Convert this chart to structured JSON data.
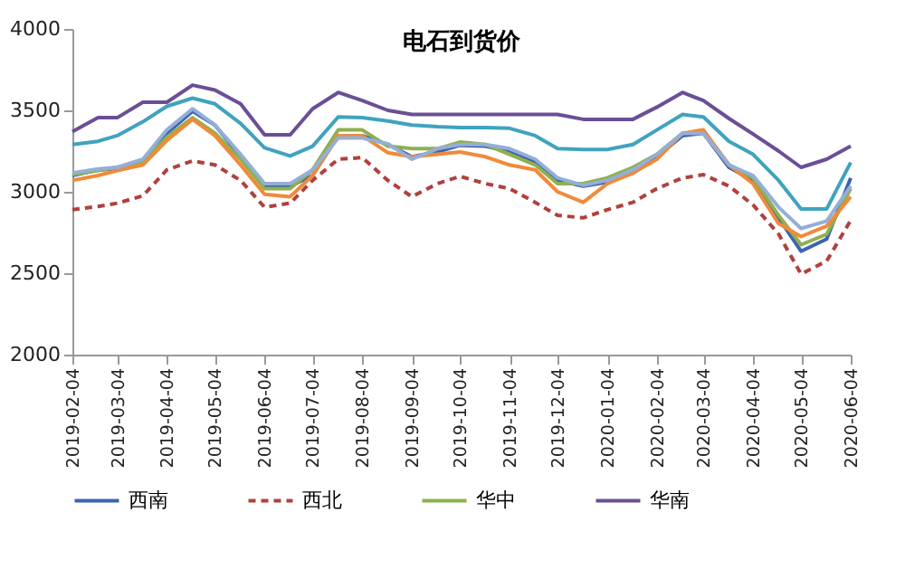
{
  "chart_data": {
    "type": "line",
    "title": "电石到货价",
    "x": [
      "2019-02-04",
      "2019-02-20",
      "2019-03-04",
      "2019-03-20",
      "2019-04-04",
      "2019-04-20",
      "2019-05-04",
      "2019-05-20",
      "2019-06-04",
      "2019-06-20",
      "2019-07-04",
      "2019-07-20",
      "2019-08-04",
      "2019-08-20",
      "2019-09-04",
      "2019-09-20",
      "2019-10-04",
      "2019-10-20",
      "2019-11-04",
      "2019-11-20",
      "2019-12-04",
      "2019-12-20",
      "2020-01-04",
      "2020-01-20",
      "2020-02-04",
      "2020-02-20",
      "2020-03-04",
      "2020-03-20",
      "2020-04-04",
      "2020-04-20",
      "2020-05-04",
      "2020-05-20",
      "2020-06-04"
    ],
    "series": [
      {
        "name": "西南",
        "color": "#3d63b0",
        "values": [
          3100,
          3135,
          3140,
          3170,
          3360,
          3495,
          3410,
          3215,
          3035,
          3035,
          3100,
          3345,
          3345,
          3290,
          3215,
          3245,
          3285,
          3280,
          3245,
          3180,
          3070,
          3035,
          3060,
          3115,
          3215,
          3345,
          3360,
          3150,
          3070,
          2840,
          2635,
          2710,
          3085
        ]
      },
      {
        "name": "西北",
        "color": "#b0413e",
        "line_style": "dashed",
        "values": [
          2890,
          2910,
          2930,
          2975,
          3135,
          3190,
          3165,
          3070,
          2905,
          2930,
          3070,
          3200,
          3210,
          3070,
          2970,
          3050,
          3095,
          3050,
          3020,
          2935,
          2855,
          2840,
          2890,
          2935,
          3020,
          3085,
          3105,
          3035,
          2920,
          2740,
          2495,
          2575,
          2825
        ]
      },
      {
        "name": "华中",
        "color": "#8fb04e",
        "values": [
          3105,
          3130,
          3150,
          3180,
          3335,
          3455,
          3360,
          3200,
          3020,
          3020,
          3135,
          3380,
          3380,
          3280,
          3265,
          3265,
          3305,
          3290,
          3230,
          3165,
          3050,
          3050,
          3085,
          3150,
          3230,
          3360,
          3360,
          3165,
          3085,
          2855,
          2675,
          2740,
          3020
        ]
      },
      {
        "name": "华南",
        "color": "#6a4f96",
        "values": [
          3370,
          3455,
          3455,
          3550,
          3550,
          3655,
          3625,
          3540,
          3350,
          3350,
          3510,
          3610,
          3560,
          3500,
          3475,
          3475,
          3475,
          3475,
          3475,
          3475,
          3475,
          3445,
          3445,
          3445,
          3520,
          3610,
          3560,
          3450,
          3355,
          3250,
          3150,
          3200,
          3280
        ]
      },
      {
        "color": "#3fa3bf",
        "values": [
          3290,
          3310,
          3345,
          3430,
          3525,
          3575,
          3540,
          3420,
          3270,
          3220,
          3280,
          3460,
          3455,
          3435,
          3410,
          3400,
          3395,
          3395,
          3390,
          3345,
          3265,
          3260,
          3260,
          3290,
          3380,
          3475,
          3460,
          3310,
          3230,
          3070,
          2895,
          2895,
          3180
        ]
      },
      {
        "color": "#f08a3a",
        "values": [
          3070,
          3100,
          3130,
          3165,
          3315,
          3445,
          3345,
          3165,
          2985,
          2970,
          3100,
          3345,
          3345,
          3240,
          3215,
          3230,
          3245,
          3215,
          3165,
          3135,
          3000,
          2935,
          3050,
          3115,
          3200,
          3360,
          3380,
          3165,
          3050,
          2805,
          2725,
          2790,
          2970
        ]
      },
      {
        "color": "#93afd8",
        "values": [
          3115,
          3140,
          3150,
          3200,
          3380,
          3510,
          3410,
          3230,
          3050,
          3050,
          3135,
          3330,
          3330,
          3295,
          3200,
          3265,
          3290,
          3290,
          3265,
          3200,
          3085,
          3040,
          3070,
          3135,
          3230,
          3360,
          3360,
          3165,
          3100,
          2905,
          2775,
          2820,
          3035
        ]
      }
    ],
    "ylim": [
      2000,
      4000
    ],
    "yticks": [
      2000,
      2500,
      3000,
      3500,
      4000
    ],
    "xlim": [
      "2019-02-04",
      "2020-06-04"
    ],
    "xticks": [
      "2019-02-04",
      "2019-03-04",
      "2019-04-04",
      "2019-05-04",
      "2019-06-04",
      "2019-07-04",
      "2019-08-04",
      "2019-09-04",
      "2019-10-04",
      "2019-11-04",
      "2019-12-04",
      "2020-01-04",
      "2020-02-04",
      "2020-03-04",
      "2020-04-04",
      "2020-05-04",
      "2020-06-04"
    ],
    "grid": false,
    "legend": "bottom",
    "marker": "none",
    "line_style": "solid"
  }
}
